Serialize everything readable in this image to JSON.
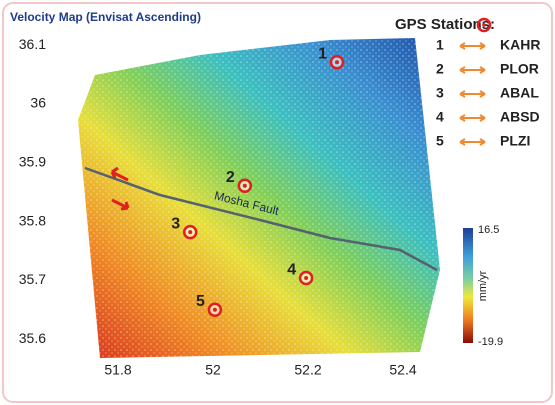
{
  "title": "Velocity Map (Envisat Ascending)",
  "legend": {
    "title": "GPS Stations:",
    "items": [
      {
        "number": "1",
        "name": "KAHR"
      },
      {
        "number": "2",
        "name": "PLOR"
      },
      {
        "number": "3",
        "name": "ABAL"
      },
      {
        "number": "4",
        "name": "ABSD"
      },
      {
        "number": "5",
        "name": "PLZI"
      }
    ]
  },
  "axes": {
    "xticks": [
      51.8,
      52,
      52.2,
      52.4
    ],
    "yticks": [
      36.1,
      36,
      35.9,
      35.8,
      35.7,
      35.6
    ]
  },
  "stations": [
    {
      "label": "1",
      "lon": 52.261,
      "lat": 36.071
    },
    {
      "label": "2",
      "lon": 52.067,
      "lat": 35.861
    },
    {
      "label": "3",
      "lon": 51.952,
      "lat": 35.782
    },
    {
      "label": "4",
      "lon": 52.196,
      "lat": 35.704
    },
    {
      "label": "5",
      "lon": 52.004,
      "lat": 35.65
    }
  ],
  "fault_label": "Mosha Fault",
  "colorbar": {
    "max": 16.5,
    "min": -19.9,
    "unit": "mm/yr"
  }
}
